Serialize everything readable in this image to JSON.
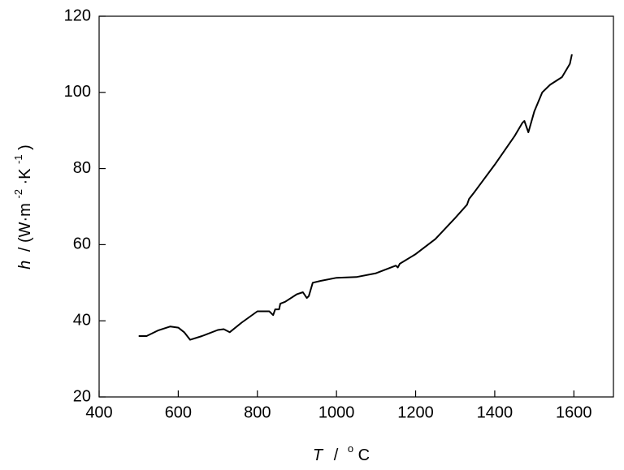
{
  "chart_data": {
    "type": "line",
    "xlabel": {
      "symbol": "T",
      "separator": "/",
      "degree": "o",
      "unit": "C"
    },
    "ylabel": {
      "symbol": "h",
      "unit_open": "/ (W·m",
      "exp1": "-2",
      "unit_mid": "·K",
      "exp2": "-1",
      "unit_close": ")"
    },
    "x": [
      500,
      520,
      550,
      580,
      600,
      615,
      630,
      660,
      700,
      715,
      730,
      760,
      800,
      830,
      840,
      845,
      855,
      858,
      870,
      900,
      915,
      925,
      930,
      940,
      960,
      1000,
      1050,
      1100,
      1150,
      1155,
      1160,
      1200,
      1250,
      1300,
      1330,
      1335,
      1350,
      1400,
      1450,
      1470,
      1475,
      1485,
      1500,
      1520,
      1540,
      1570,
      1590,
      1595
    ],
    "series": [
      {
        "name": "h",
        "color": "#000000",
        "values": [
          36,
          36,
          37.5,
          38.5,
          38.2,
          37,
          35,
          36,
          37.6,
          37.8,
          37,
          39.5,
          42.5,
          42.5,
          41.5,
          43,
          43,
          44.5,
          45,
          47,
          47.5,
          46,
          46.5,
          50,
          50.5,
          51.3,
          51.5,
          52.5,
          54.5,
          54,
          55,
          57.5,
          61.5,
          67,
          70.5,
          72,
          74,
          81,
          88.5,
          92,
          92.5,
          89.5,
          95,
          100,
          102,
          104,
          107.5,
          110
        ]
      }
    ],
    "xlim": [
      400,
      1700
    ],
    "xticks": [
      400,
      600,
      800,
      1000,
      1200,
      1400,
      1600
    ],
    "ylim": [
      20,
      120
    ],
    "yticks": [
      20,
      40,
      60,
      80,
      100,
      120
    ]
  }
}
